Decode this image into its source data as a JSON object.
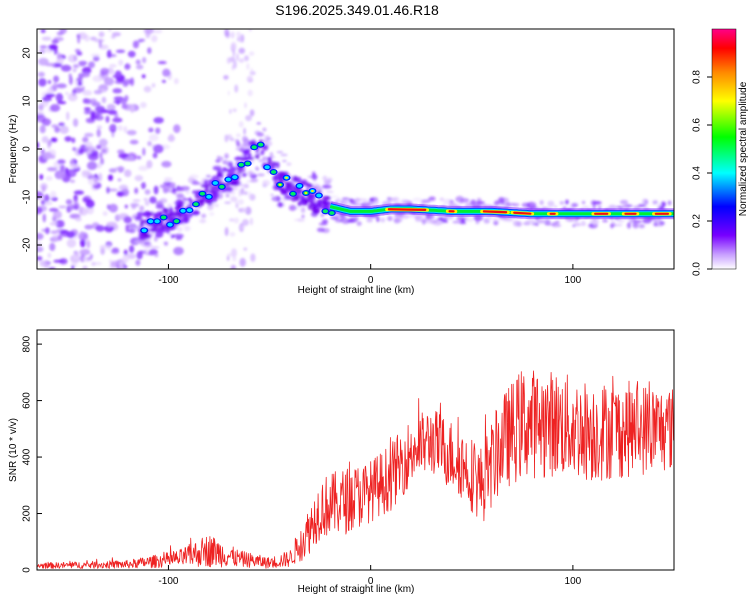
{
  "title": "S196.2025.349.01.46.R18",
  "chart_data": [
    {
      "type": "heatmap",
      "name": "spectrogram",
      "xlabel": "Height of straight line (km)",
      "ylabel": "Frequency (Hz)",
      "xlim": [
        -165,
        150
      ],
      "ylim": [
        -25,
        25
      ],
      "xticks": [
        -100,
        0,
        100
      ],
      "yticks": [
        -20,
        -10,
        0,
        10,
        20
      ],
      "colorbar": {
        "label": "Normalized spectral amplitude",
        "range": [
          0,
          1
        ],
        "ticks": [
          0.0,
          0.2,
          0.4,
          0.6,
          0.8
        ],
        "tick_labels": [
          "0.0",
          "0.2",
          "0.4",
          "0.6",
          "0.8"
        ],
        "colormap": [
          "#ffffff",
          "#7700ff",
          "#0000ff",
          "#00ffff",
          "#00ff00",
          "#ffff00",
          "#ff8800",
          "#ff0000",
          "#ff0088"
        ]
      },
      "ridge": [
        {
          "x": -110,
          "f": -16
        },
        {
          "x": -100,
          "f": -15
        },
        {
          "x": -90,
          "f": -12
        },
        {
          "x": -80,
          "f": -9
        },
        {
          "x": -70,
          "f": -6
        },
        {
          "x": -60,
          "f": -2
        },
        {
          "x": -55,
          "f": 0
        },
        {
          "x": -48,
          "f": -5
        },
        {
          "x": -40,
          "f": -8
        },
        {
          "x": -30,
          "f": -10
        },
        {
          "x": -20,
          "f": -12
        },
        {
          "x": -10,
          "f": -13
        },
        {
          "x": 0,
          "f": -13
        },
        {
          "x": 10,
          "f": -12.5
        },
        {
          "x": 20,
          "f": -12.5
        },
        {
          "x": 40,
          "f": -13
        },
        {
          "x": 60,
          "f": -13
        },
        {
          "x": 80,
          "f": -13.5
        },
        {
          "x": 100,
          "f": -13.5
        },
        {
          "x": 120,
          "f": -13.5
        },
        {
          "x": 148,
          "f": -13.5
        }
      ]
    },
    {
      "type": "line",
      "name": "snr",
      "xlabel": "Height of straight line (km)",
      "ylabel": "SNR (10 * v/v)",
      "xlim": [
        -165,
        150
      ],
      "ylim": [
        0,
        850
      ],
      "xticks": [
        -100,
        0,
        100
      ],
      "yticks": [
        0,
        200,
        400,
        600,
        800
      ],
      "color": "#ee2222",
      "envelope": [
        {
          "x": -165,
          "base": 15,
          "amp": 10
        },
        {
          "x": -120,
          "base": 20,
          "amp": 15
        },
        {
          "x": -95,
          "base": 40,
          "amp": 30
        },
        {
          "x": -80,
          "base": 70,
          "amp": 60
        },
        {
          "x": -65,
          "base": 40,
          "amp": 30
        },
        {
          "x": -50,
          "base": 25,
          "amp": 20
        },
        {
          "x": -40,
          "base": 40,
          "amp": 30
        },
        {
          "x": -32,
          "base": 120,
          "amp": 80
        },
        {
          "x": -25,
          "base": 220,
          "amp": 110
        },
        {
          "x": -10,
          "base": 250,
          "amp": 120
        },
        {
          "x": 0,
          "base": 280,
          "amp": 110
        },
        {
          "x": 10,
          "base": 330,
          "amp": 120
        },
        {
          "x": 20,
          "base": 420,
          "amp": 120
        },
        {
          "x": 30,
          "base": 460,
          "amp": 120
        },
        {
          "x": 45,
          "base": 380,
          "amp": 130
        },
        {
          "x": 55,
          "base": 300,
          "amp": 140
        },
        {
          "x": 65,
          "base": 450,
          "amp": 170
        },
        {
          "x": 75,
          "base": 520,
          "amp": 200
        },
        {
          "x": 90,
          "base": 520,
          "amp": 190
        },
        {
          "x": 110,
          "base": 490,
          "amp": 180
        },
        {
          "x": 130,
          "base": 500,
          "amp": 170
        },
        {
          "x": 150,
          "base": 500,
          "amp": 150
        }
      ]
    }
  ]
}
